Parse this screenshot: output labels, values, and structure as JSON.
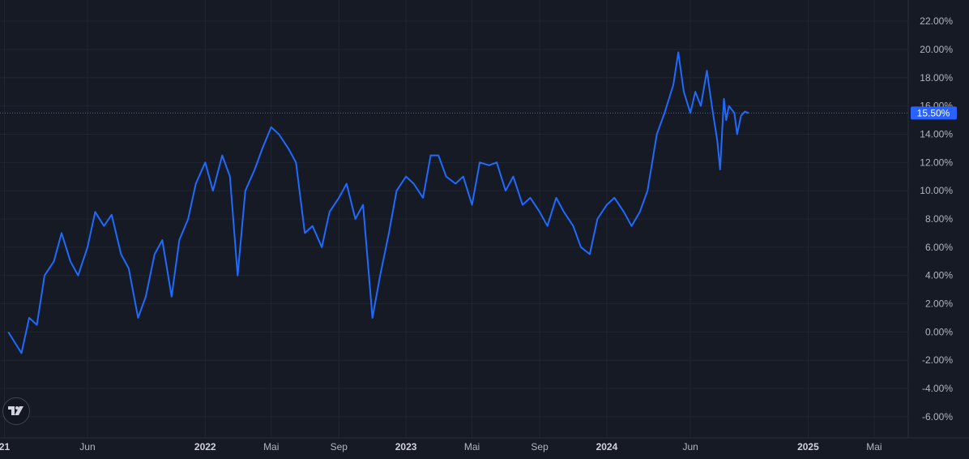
{
  "chart_data": {
    "type": "line",
    "series": [
      {
        "color": "#1e6bff",
        "x": [
          "2021-01-08",
          "2021-02-01",
          "2021-02-15",
          "2021-03-01",
          "2021-03-15",
          "2021-04-01",
          "2021-04-15",
          "2021-05-01",
          "2021-05-15",
          "2021-06-01",
          "2021-06-15",
          "2021-07-01",
          "2021-07-15",
          "2021-08-01",
          "2021-08-15",
          "2021-09-01",
          "2021-09-15",
          "2021-10-01",
          "2021-10-15",
          "2021-11-01",
          "2021-11-15",
          "2021-12-01",
          "2021-12-15",
          "2022-01-01",
          "2022-01-15",
          "2022-02-01",
          "2022-02-15",
          "2022-03-01",
          "2022-03-15",
          "2022-04-01",
          "2022-04-15",
          "2022-05-01",
          "2022-05-15",
          "2022-06-01",
          "2022-06-15",
          "2022-07-01",
          "2022-07-15",
          "2022-08-01",
          "2022-08-15",
          "2022-09-01",
          "2022-09-15",
          "2022-10-01",
          "2022-10-15",
          "2022-11-01",
          "2022-11-15",
          "2022-12-01",
          "2022-12-15",
          "2023-01-01",
          "2023-01-15",
          "2023-02-01",
          "2023-02-15",
          "2023-03-01",
          "2023-03-15",
          "2023-04-01",
          "2023-04-15",
          "2023-05-01",
          "2023-05-15",
          "2023-06-01",
          "2023-06-15",
          "2023-07-01",
          "2023-07-15",
          "2023-08-01",
          "2023-08-15",
          "2023-09-01",
          "2023-09-15",
          "2023-10-01",
          "2023-10-15",
          "2023-11-01",
          "2023-11-15",
          "2023-12-01",
          "2023-12-15",
          "2024-01-01",
          "2024-01-15",
          "2024-02-01",
          "2024-02-15",
          "2024-03-01",
          "2024-03-15",
          "2024-04-01",
          "2024-04-15",
          "2024-05-01",
          "2024-05-10",
          "2024-05-20",
          "2024-06-01",
          "2024-06-10",
          "2024-06-20",
          "2024-07-01",
          "2024-07-10",
          "2024-07-20",
          "2024-07-25",
          "2024-08-01",
          "2024-08-05",
          "2024-08-10",
          "2024-08-20",
          "2024-08-25",
          "2024-09-01",
          "2024-09-08",
          "2024-09-15"
        ],
        "y": [
          0.0,
          -1.5,
          1.0,
          0.5,
          4.0,
          5.0,
          7.0,
          5.0,
          4.0,
          6.0,
          8.5,
          7.5,
          8.3,
          5.5,
          4.5,
          1.0,
          2.5,
          5.5,
          6.5,
          2.5,
          6.5,
          8.0,
          10.5,
          12.0,
          10.0,
          12.5,
          11.0,
          4.0,
          10.0,
          11.5,
          13.0,
          14.5,
          14.0,
          13.0,
          12.0,
          7.0,
          7.5,
          6.0,
          8.5,
          9.5,
          10.5,
          8.0,
          9.0,
          1.0,
          4.0,
          7.0,
          10.0,
          11.0,
          10.5,
          9.5,
          12.5,
          12.5,
          11.0,
          10.5,
          11.0,
          9.0,
          12.0,
          11.8,
          12.0,
          10.0,
          11.0,
          9.0,
          9.5,
          8.5,
          7.5,
          9.5,
          8.5,
          7.5,
          6.0,
          5.5,
          8.0,
          9.0,
          9.5,
          8.5,
          7.5,
          8.5,
          10.0,
          14.0,
          15.5,
          17.5,
          19.8,
          17.0,
          15.5,
          17.0,
          16.0,
          18.5,
          16.0,
          13.5,
          11.5,
          16.5,
          15.0,
          16.0,
          15.5,
          14.0,
          15.3,
          15.6,
          15.5
        ]
      }
    ],
    "y_ticks": [
      "22.00%",
      "20.00%",
      "18.00%",
      "16.00%",
      "14.00%",
      "12.00%",
      "10.00%",
      "8.00%",
      "6.00%",
      "4.00%",
      "2.00%",
      "0.00%",
      "-2.00%",
      "-4.00%",
      "-6.00%"
    ],
    "x_ticks": [
      {
        "label": "21",
        "date": "2021-01-01",
        "bold": true
      },
      {
        "label": "Jun",
        "date": "2021-06-01",
        "bold": false
      },
      {
        "label": "2022",
        "date": "2022-01-01",
        "bold": true
      },
      {
        "label": "Mai",
        "date": "2022-05-01",
        "bold": false
      },
      {
        "label": "Sep",
        "date": "2022-09-01",
        "bold": false
      },
      {
        "label": "2023",
        "date": "2023-01-01",
        "bold": true
      },
      {
        "label": "Mai",
        "date": "2023-05-01",
        "bold": false
      },
      {
        "label": "Sep",
        "date": "2023-09-01",
        "bold": false
      },
      {
        "label": "2024",
        "date": "2024-01-01",
        "bold": true
      },
      {
        "label": "Jun",
        "date": "2024-06-01",
        "bold": false
      },
      {
        "label": "2025",
        "date": "2025-01-01",
        "bold": true
      },
      {
        "label": "Mai",
        "date": "2025-05-01",
        "bold": false
      }
    ],
    "ylim": [
      -7.5,
      23.5
    ],
    "xlim": [
      "2020-12-24",
      "2025-07-02"
    ],
    "grid": true,
    "last_value_label": "15.50%",
    "colors": {
      "background": "#161a25",
      "grid": "#222632",
      "line": "#1e6bff",
      "label_bg": "#2962ff",
      "axis_text": "#b2b5be"
    }
  },
  "icons": {
    "logo": "tradingview-logo-icon"
  }
}
